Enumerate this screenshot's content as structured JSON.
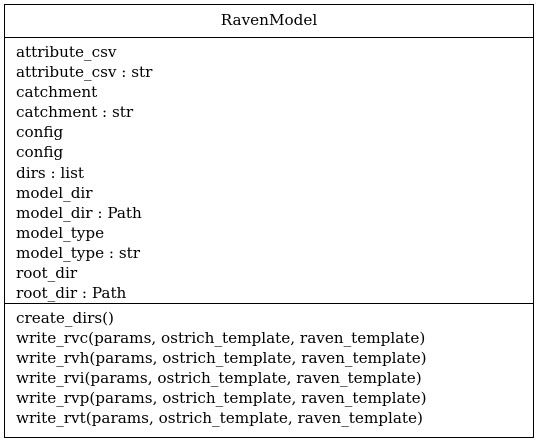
{
  "class_name": "RavenModel",
  "attributes": [
    "attribute_csv",
    "attribute_csv : str",
    "catchment",
    "catchment : str",
    "config",
    "config",
    "dirs : list",
    "model_dir",
    "model_dir : Path",
    "model_type",
    "model_type : str",
    "root_dir",
    "root_dir : Path"
  ],
  "methods": [
    "create_dirs()",
    "write_rvc(params, ostrich_template, raven_template)",
    "write_rvh(params, ostrich_template, raven_template)",
    "write_rvi(params, ostrich_template, raven_template)",
    "write_rvp(params, ostrich_template, raven_template)",
    "write_rvt(params, ostrich_template, raven_template)"
  ]
}
